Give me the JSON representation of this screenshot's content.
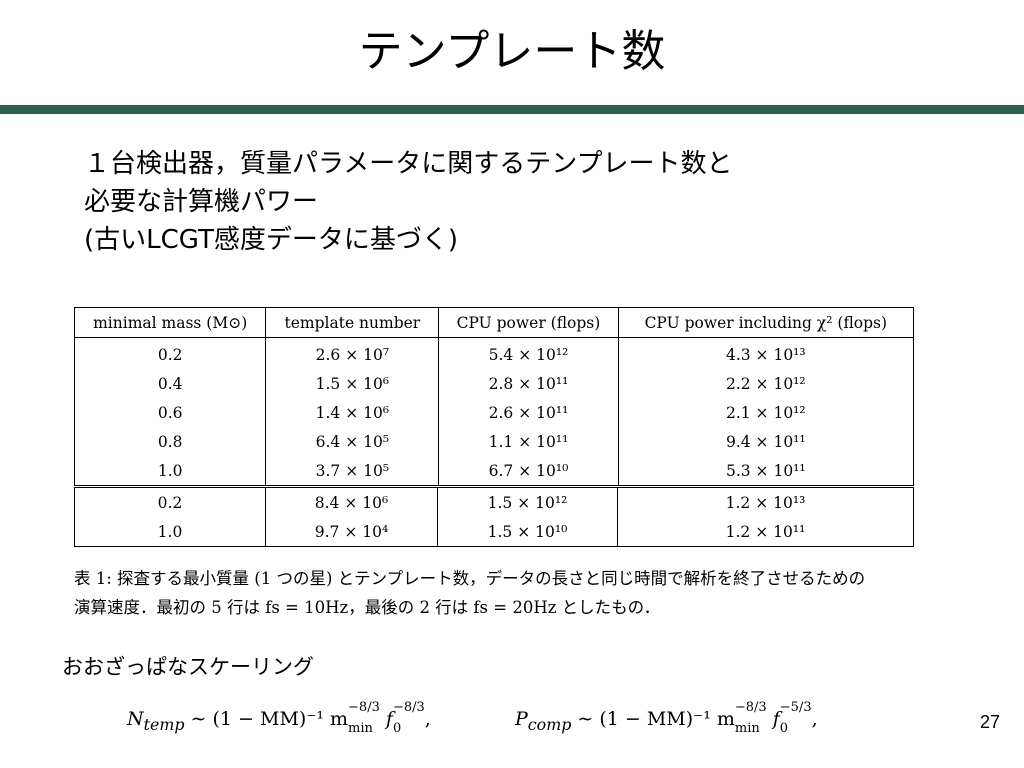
{
  "slide": {
    "title": "テンプレート数",
    "accent_color": "#2e5e4e",
    "page_number": "27"
  },
  "intro": {
    "lines": [
      "１台検出器，質量パラメータに関するテンプレート数と",
      "必要な計算機パワー",
      "(古いLCGT感度データに基づく)"
    ]
  },
  "table": {
    "headers": [
      "minimal mass (M⊙)",
      "template number",
      "CPU power (flops)",
      "CPU power including χ² (flops)"
    ],
    "group1": [
      [
        "0.2",
        "2.6 × 10⁷",
        "5.4 × 10¹²",
        "4.3 × 10¹³"
      ],
      [
        "0.4",
        "1.5 × 10⁶",
        "2.8 × 10¹¹",
        "2.2 × 10¹²"
      ],
      [
        "0.6",
        "1.4 × 10⁶",
        "2.6 × 10¹¹",
        "2.1 × 10¹²"
      ],
      [
        "0.8",
        "6.4 × 10⁵",
        "1.1 × 10¹¹",
        "9.4 × 10¹¹"
      ],
      [
        "1.0",
        "3.7 × 10⁵",
        "6.7 × 10¹⁰",
        "5.3 × 10¹¹"
      ]
    ],
    "group2": [
      [
        "0.2",
        "8.4 × 10⁶",
        "1.5 × 10¹²",
        "1.2 × 10¹³"
      ],
      [
        "1.0",
        "9.7 × 10⁴",
        "1.5 × 10¹⁰",
        "1.2 × 10¹¹"
      ]
    ]
  },
  "caption": {
    "lines": [
      "表 1: 探査する最小質量 (1 つの星) とテンプレート数，データの長さと同じ時間で解析を終了させるための",
      "演算速度．最初の 5 行は fs = 10Hz，最後の 2 行は fs = 20Hz としたもの．"
    ]
  },
  "scaling": {
    "label": "おおざっぱなスケーリング",
    "formula1": {
      "lhs": "N",
      "lhs_sub": "temp",
      "middle": " ∼ (1 − MM)⁻¹ m",
      "m_sup": "−8/3",
      "m_sub": "min",
      "f": " f",
      "f_sup": "−8/3",
      "f_sub": "0",
      "tail": ","
    },
    "formula2": {
      "lhs": "P",
      "lhs_sub": "comp",
      "middle": " ∼ (1 − MM)⁻¹ m",
      "m_sup": "−8/3",
      "m_sub": "min",
      "f": " f",
      "f_sup": "−5/3",
      "f_sub": "0",
      "tail": ","
    }
  }
}
